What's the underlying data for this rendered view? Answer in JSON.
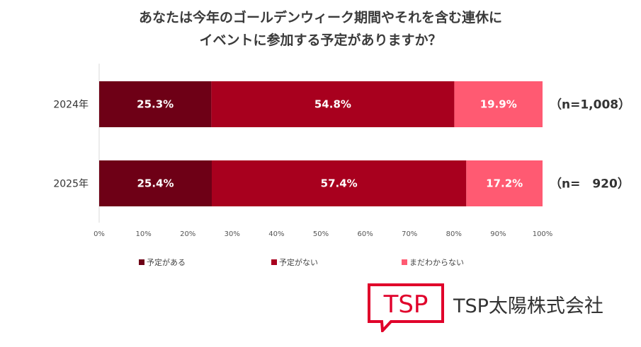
{
  "title_line1": "あなたは今年のゴールデンウィーク期間やそれを含む連休に",
  "title_line2": "イベントに参加する予定がありますか？",
  "colors": {
    "series": [
      "#6e0016",
      "#a8001e",
      "#ff5a72"
    ],
    "brand": "#e0002a"
  },
  "chart_data": {
    "type": "bar",
    "orientation": "horizontal",
    "stacked": true,
    "categories": [
      "2024年",
      "2025年"
    ],
    "series": [
      {
        "name": "予定がある",
        "values": [
          25.3,
          25.4
        ],
        "labels": [
          "25.3%",
          "25.4%"
        ]
      },
      {
        "name": "予定がない",
        "values": [
          54.8,
          57.4
        ],
        "labels": [
          "54.8%",
          "57.4%"
        ]
      },
      {
        "name": "まだわからない",
        "values": [
          19.9,
          17.2
        ],
        "labels": [
          "19.9%",
          "17.2%"
        ]
      }
    ],
    "sample_sizes": [
      "（n=1,008）",
      "（n=　920）"
    ],
    "xlim": [
      0,
      100
    ],
    "xticks": [
      "0%",
      "10%",
      "20%",
      "30%",
      "40%",
      "50%",
      "60%",
      "70%",
      "80%",
      "90%",
      "100%"
    ],
    "legend_position": "bottom",
    "grid": false
  },
  "logo": {
    "mark_text": "TSP",
    "company_name": "TSP太陽株式会社"
  }
}
